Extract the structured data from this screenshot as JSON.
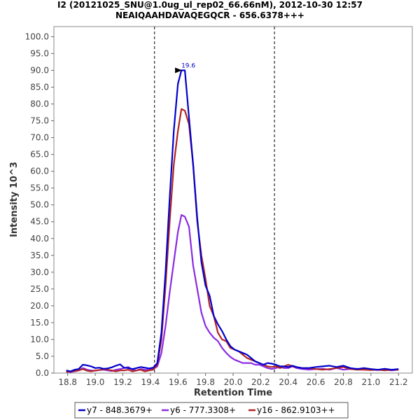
{
  "chart_data": {
    "type": "line",
    "title": "I2 (20121025_SNU@1.0ug_ul_rep02_66.66nM), 2012-10-30 12:57",
    "subtitle": "NEAIQAAHDAVAQEGQCR - 656.6378+++",
    "xlabel": "Retention Time",
    "ylabel": "Intensity 10^3",
    "xlim": [
      18.7,
      21.3
    ],
    "ylim": [
      0,
      103
    ],
    "x_ticks": [
      "18.8",
      "19.0",
      "19.2",
      "19.4",
      "19.6",
      "19.8",
      "20.0",
      "20.2",
      "20.4",
      "20.6",
      "20.8",
      "21.0",
      "21.2"
    ],
    "y_ticks": [
      "0.0",
      "5.0",
      "10.0",
      "15.0",
      "20.0",
      "25.0",
      "30.0",
      "35.0",
      "40.0",
      "45.0",
      "50.0",
      "55.0",
      "60.0",
      "65.0",
      "70.0",
      "75.0",
      "80.0",
      "85.0",
      "90.0",
      "95.0",
      "100.0"
    ],
    "boundaries": [
      19.43,
      20.3
    ],
    "peak_annotation": {
      "x": 19.65,
      "y": 90.0,
      "label": "19.6"
    },
    "legend_position": "bottom",
    "series": [
      {
        "name": "y7 - 848.3679+",
        "color": "#0000cc",
        "x": [
          18.79,
          18.82,
          18.85,
          18.88,
          18.91,
          18.94,
          18.97,
          19.0,
          19.03,
          19.06,
          19.09,
          19.12,
          19.15,
          19.18,
          19.21,
          19.24,
          19.27,
          19.3,
          19.33,
          19.36,
          19.39,
          19.42,
          19.45,
          19.48,
          19.51,
          19.54,
          19.57,
          19.6,
          19.625,
          19.65,
          19.68,
          19.71,
          19.74,
          19.77,
          19.8,
          19.83,
          19.86,
          19.89,
          19.92,
          19.95,
          19.98,
          20.01,
          20.04,
          20.07,
          20.1,
          20.13,
          20.16,
          20.19,
          20.22,
          20.25,
          20.28,
          20.31,
          20.34,
          20.37,
          20.4,
          20.43,
          20.46,
          20.5,
          20.55,
          20.6,
          20.65,
          20.7,
          20.75,
          20.8,
          20.85,
          20.9,
          20.95,
          21.0,
          21.05,
          21.1,
          21.15,
          21.2
        ],
        "y": [
          0.8,
          0.5,
          1.0,
          1.2,
          2.5,
          2.3,
          2.0,
          1.5,
          1.6,
          1.3,
          1.4,
          1.7,
          2.2,
          2.6,
          1.6,
          1.5,
          1.2,
          1.5,
          1.8,
          1.6,
          1.4,
          1.6,
          3.0,
          12.0,
          30.0,
          52.0,
          72.0,
          86.0,
          90.0,
          90.0,
          76.0,
          62.0,
          46.0,
          33.0,
          26.0,
          23.0,
          17.0,
          14.5,
          12.5,
          10.0,
          8.0,
          7.0,
          6.5,
          6.0,
          5.5,
          4.5,
          3.5,
          3.0,
          2.5,
          3.0,
          2.8,
          2.5,
          2.0,
          2.0,
          1.8,
          2.2,
          1.8,
          1.5,
          1.5,
          1.8,
          2.0,
          2.2,
          1.8,
          2.2,
          1.5,
          1.2,
          1.5,
          1.2,
          1.0,
          1.3,
          1.0,
          1.2
        ]
      },
      {
        "name": "y6 - 777.3308+",
        "color": "#8a2be2",
        "x": [
          18.79,
          18.82,
          18.85,
          18.88,
          18.91,
          18.94,
          18.97,
          19.0,
          19.03,
          19.06,
          19.09,
          19.12,
          19.15,
          19.18,
          19.21,
          19.24,
          19.27,
          19.3,
          19.33,
          19.36,
          19.39,
          19.42,
          19.45,
          19.48,
          19.51,
          19.54,
          19.57,
          19.6,
          19.625,
          19.65,
          19.68,
          19.71,
          19.74,
          19.77,
          19.8,
          19.83,
          19.86,
          19.89,
          19.92,
          19.95,
          19.98,
          20.01,
          20.04,
          20.07,
          20.1,
          20.13,
          20.16,
          20.19,
          20.22,
          20.25,
          20.28,
          20.31,
          20.34,
          20.37,
          20.4,
          20.43,
          20.46,
          20.5,
          20.55,
          20.6,
          20.65,
          20.7,
          20.75,
          20.8,
          20.85,
          20.9,
          20.95,
          21.0,
          21.05,
          21.1,
          21.15,
          21.2
        ],
        "y": [
          0.5,
          0.3,
          0.5,
          0.8,
          1.5,
          1.0,
          0.8,
          0.7,
          0.9,
          1.0,
          0.8,
          0.6,
          1.0,
          1.2,
          1.5,
          1.8,
          1.0,
          0.8,
          1.2,
          1.0,
          1.0,
          1.2,
          2.0,
          6.0,
          14.0,
          24.0,
          33.0,
          42.0,
          47.0,
          46.5,
          43.5,
          32.0,
          25.0,
          18.0,
          14.0,
          12.0,
          10.5,
          9.5,
          7.5,
          6.0,
          4.8,
          4.0,
          3.5,
          3.0,
          3.0,
          3.0,
          2.5,
          2.5,
          2.0,
          1.5,
          1.2,
          1.5,
          1.8,
          1.5,
          1.5,
          2.0,
          1.5,
          1.2,
          1.0,
          1.2,
          1.3,
          1.0,
          1.5,
          1.0,
          1.2,
          1.3,
          1.0,
          1.0,
          0.9,
          1.0,
          0.8,
          1.0
        ]
      },
      {
        "name": "y16 - 862.9103++",
        "color": "#b22222",
        "x": [
          18.79,
          18.82,
          18.85,
          18.88,
          18.91,
          18.94,
          18.97,
          19.0,
          19.03,
          19.06,
          19.09,
          19.12,
          19.15,
          19.18,
          19.21,
          19.24,
          19.27,
          19.3,
          19.33,
          19.36,
          19.39,
          19.42,
          19.45,
          19.48,
          19.51,
          19.54,
          19.57,
          19.6,
          19.625,
          19.65,
          19.68,
          19.71,
          19.74,
          19.77,
          19.8,
          19.83,
          19.86,
          19.89,
          19.92,
          19.95,
          19.98,
          20.01,
          20.04,
          20.07,
          20.1,
          20.13,
          20.16,
          20.19,
          20.22,
          20.25,
          20.28,
          20.31,
          20.34,
          20.37,
          20.4,
          20.43,
          20.46,
          20.5,
          20.55,
          20.6,
          20.65,
          20.7,
          20.75,
          20.8,
          20.85,
          20.9,
          20.95,
          21.0,
          21.05,
          21.1,
          21.15,
          21.2
        ],
        "y": [
          0.3,
          0.5,
          0.6,
          0.8,
          1.2,
          0.7,
          0.5,
          0.8,
          0.9,
          1.2,
          1.0,
          0.8,
          0.5,
          0.8,
          0.8,
          1.0,
          0.5,
          0.8,
          1.0,
          0.5,
          0.8,
          1.0,
          2.5,
          10.0,
          26.0,
          45.0,
          62.0,
          72.0,
          78.5,
          78.0,
          74.0,
          62.0,
          45.0,
          35.0,
          28.0,
          20.0,
          17.0,
          12.0,
          10.0,
          9.5,
          7.5,
          7.0,
          6.5,
          5.5,
          4.5,
          4.0,
          3.5,
          3.0,
          2.5,
          2.0,
          1.8,
          2.0,
          1.5,
          2.0,
          2.5,
          2.0,
          1.8,
          1.5,
          1.5,
          1.2,
          1.0,
          1.2,
          1.5,
          1.8,
          1.2,
          1.0,
          1.0,
          0.9,
          1.0,
          0.8,
          1.0,
          1.0
        ]
      }
    ]
  }
}
